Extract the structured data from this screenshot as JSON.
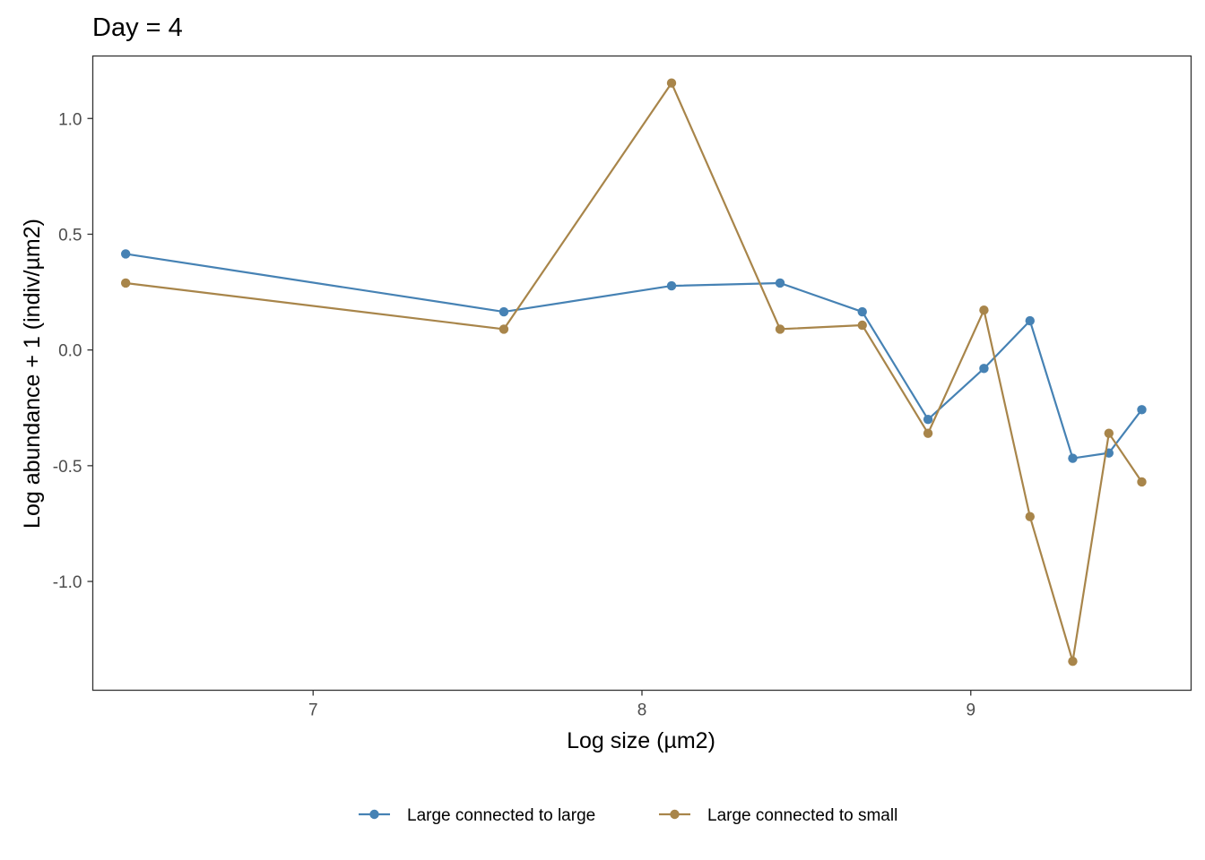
{
  "chart_data": {
    "type": "line",
    "title": "Day = 4",
    "xlabel": "Log size (µm2)",
    "ylabel": "Log abundance + 1 (indiv/µm2)",
    "xlim": [
      6.33,
      9.67
    ],
    "ylim": [
      -1.47,
      1.27
    ],
    "x_ticks": [
      7,
      8,
      9
    ],
    "x_tick_labels": [
      "7",
      "8",
      "9"
    ],
    "y_ticks": [
      1.0,
      0.5,
      0.0,
      -0.5,
      -1.0
    ],
    "y_tick_labels": [
      "1.0",
      "0.5",
      "0.0",
      "-0.5",
      "-1.0"
    ],
    "grid": false,
    "legend_position": "bottom",
    "series": [
      {
        "name": "Large connected to large",
        "color": "#4682b4",
        "x": [
          6.43,
          7.58,
          8.09,
          8.42,
          8.67,
          8.87,
          9.04,
          9.18,
          9.31,
          9.42,
          9.52
        ],
        "y": [
          0.415,
          0.165,
          0.277,
          0.289,
          0.165,
          -0.3,
          -0.08,
          0.126,
          -0.468,
          -0.445,
          -0.258
        ]
      },
      {
        "name": "Large connected to small",
        "color": "#a8854a",
        "x": [
          6.43,
          7.58,
          8.09,
          8.42,
          8.67,
          8.87,
          9.04,
          9.18,
          9.31,
          9.42,
          9.52
        ],
        "y": [
          0.289,
          0.09,
          1.153,
          0.09,
          0.107,
          -0.36,
          0.172,
          -0.72,
          -1.345,
          -0.36,
          -0.57
        ]
      }
    ]
  }
}
